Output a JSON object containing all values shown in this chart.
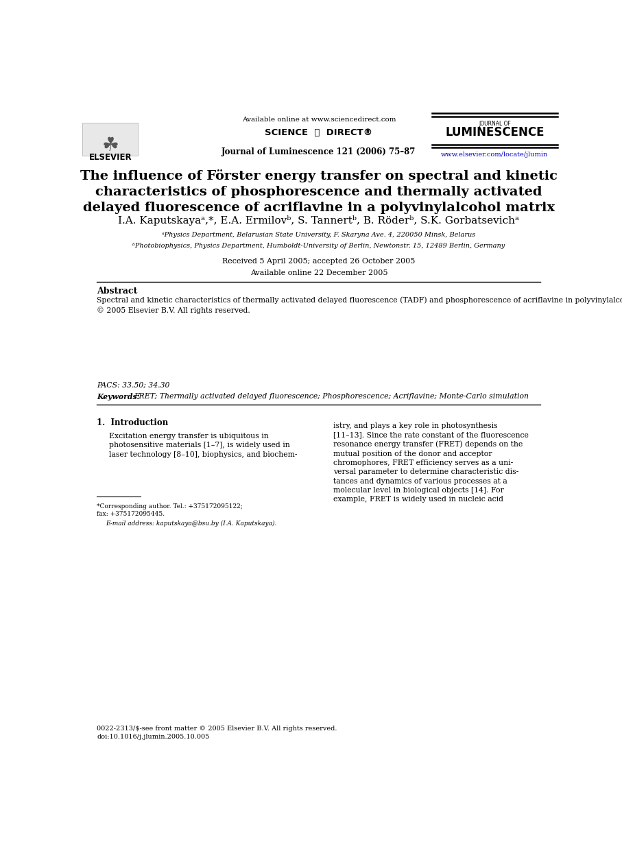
{
  "page_width": 9.07,
  "page_height": 12.38,
  "bg_color": "#ffffff",
  "header_available_text": "Available online at www.sciencedirect.com",
  "header_journal_info": "Journal of Luminescence 121 (2006) 75–87",
  "header_url_text": "www.elsevier.com/locate/jlumin",
  "header_url_color": "#0000cc",
  "title": "The influence of Förster energy transfer on spectral and kinetic\ncharacteristics of phosphorescence and thermally activated\ndelayed fluorescence of acriflavine in a polyvinylalcohol matrix",
  "authors": "I.A. Kaputskayaᵃ,*, E.A. Ermilovᵇ, S. Tannertᵇ, B. Röderᵇ, S.K. Gorbatsevichᵃ",
  "affil_a": "ᵃPhysics Department, Belarusian State University, F. Skaryna Ave. 4, 220050 Minsk, Belarus",
  "affil_b": "ᵇPhotobiophysics, Physics Department, Humboldt-University of Berlin, Newtonstr. 15, 12489 Berlin, Germany",
  "received": "Received 5 April 2005; accepted 26 October 2005",
  "available_online": "Available online 22 December 2005",
  "abstract_title": "Abstract",
  "abstract_text": "Spectral and kinetic characteristics of thermally activated delayed fluorescence (TADF) and phosphorescence of acriflavine in polyvinylalcohol films have been investigated. It was shown that TADF and phosphorescence decay times decrease due to fluorescence resonance energy transfer (FRET) as the concentration of the dye molecules increases. The luminescence spectra of the concentrated solutions are bathochromic shifted with respect to that of the deluted ones. Moreover, TADF and phosphorescence spectra of the concentrated solutions shift to the higher frequency region as emission decays. These effects are determined by the correlation between FRET direction and the heterogeneity of the triplet state lifetimes. Numerical simulations of the spectral and kinetic characteristics of TADF and phosphorescence were made by means of Monte-Carlo integrations, and results were compared with experimental data.\n© 2005 Elsevier B.V. All rights reserved.",
  "pacs": "PACS: 33.50; 34.30",
  "keywords_label": "Keywords:",
  "keywords_text": "FRET; Thermally activated delayed fluorescence; Phosphorescence; Acriflavine; Monte-Carlo simulation",
  "intro_title": "1.  Introduction",
  "intro_left": "Excitation energy transfer is ubiquitous in\nphotosensitive materials [1–7], is widely used in\nlaser technology [8–10], biophysics, and biochem-",
  "intro_right": "istry, and plays a key role in photosynthesis\n[11–13]. Since the rate constant of the fluorescence\nresonance energy transfer (FRET) depends on the\nmutual position of the donor and acceptor\nchromophores, FRET efficiency serves as a uni-\nversal parameter to determine characteristic dis-\ntances and dynamics of various processes at a\nmolecular level in biological objects [14]. For\nexample, FRET is widely used in nucleic acid",
  "footnote_line": "*Corresponding author. Tel.: +375172095122;\nfax: +375172095445.",
  "footnote_email": "E-mail address: kaputskaya@bsu.by (I.A. Kaputskaya).",
  "bottom_text": "0022-2313/$-see front matter © 2005 Elsevier B.V. All rights reserved.\ndoi:10.1016/j.jlumin.2005.10.005",
  "link_color": "#0000cc",
  "sciencedirect_logo": "SCIENCE  ⓐ  DIRECT®",
  "luminescence_label": "JOURNAL OF",
  "luminescence_title": "LUMINESCENCE",
  "elsevier_label": "ELSEVIER"
}
